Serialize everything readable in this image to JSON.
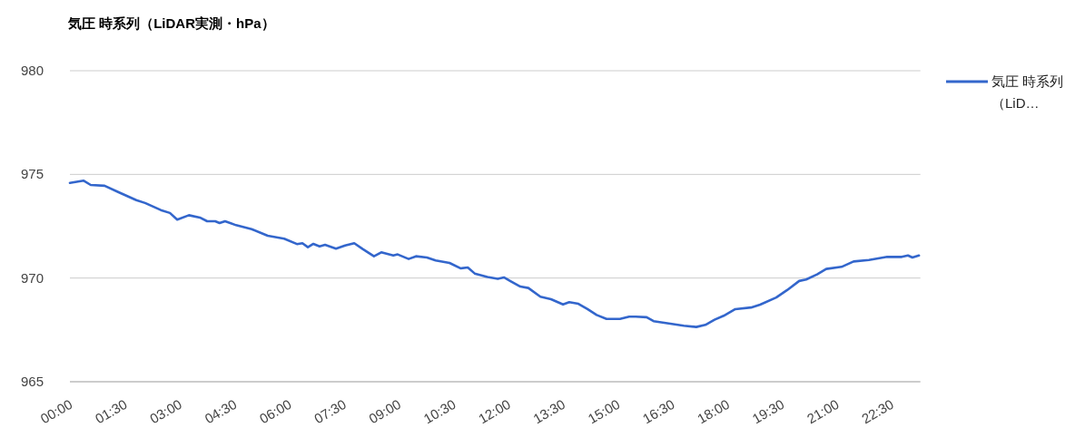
{
  "chart_data": {
    "type": "line",
    "title": "気圧 時系列（LiDAR実測・hPa）",
    "x": [
      0,
      0.37,
      0.57,
      0.95,
      1.32,
      1.82,
      2.06,
      2.49,
      2.74,
      2.94,
      3.26,
      3.56,
      3.76,
      3.98,
      4.1,
      4.25,
      4.55,
      4.98,
      5.42,
      5.87,
      6.22,
      6.37,
      6.52,
      6.67,
      6.84,
      6.99,
      7.29,
      7.54,
      7.79,
      8.03,
      8.33,
      8.53,
      8.86,
      8.98,
      9.28,
      9.48,
      9.78,
      10.02,
      10.4,
      10.7,
      10.9,
      11.09,
      11.44,
      11.72,
      11.89,
      12.06,
      12.34,
      12.56,
      12.89,
      13.18,
      13.51,
      13.68,
      13.93,
      14.18,
      14.43,
      14.7,
      15.07,
      15.32,
      15.5,
      15.8,
      15.99,
      16.49,
      16.82,
      17.16,
      17.41,
      17.66,
      17.91,
      18.23,
      18.66,
      18.91,
      19.35,
      19.65,
      19.98,
      20.17,
      20.47,
      20.72,
      21.14,
      21.47,
      21.89,
      22.39,
      22.79,
      22.96,
      23.08,
      23.26
    ],
    "series": [
      {
        "name": "気圧 時系列（LiD…",
        "color": "#3366cc",
        "values": [
          974.59,
          974.7,
          974.49,
          974.45,
          974.15,
          973.76,
          973.62,
          973.28,
          973.14,
          972.82,
          973.03,
          972.92,
          972.74,
          972.74,
          972.65,
          972.74,
          972.55,
          972.36,
          972.04,
          971.9,
          971.64,
          971.68,
          971.49,
          971.65,
          971.53,
          971.6,
          971.42,
          971.57,
          971.68,
          971.39,
          971.05,
          971.24,
          971.09,
          971.14,
          970.92,
          971.05,
          970.99,
          970.85,
          970.73,
          970.47,
          970.51,
          970.22,
          970.05,
          969.96,
          970.03,
          969.86,
          969.59,
          969.52,
          969.1,
          968.98,
          968.73,
          968.84,
          968.76,
          968.5,
          968.22,
          968.03,
          968.03,
          968.14,
          968.14,
          968.11,
          967.92,
          967.79,
          967.7,
          967.64,
          967.74,
          967.99,
          968.18,
          968.5,
          968.58,
          968.72,
          969.06,
          969.42,
          969.86,
          969.93,
          970.18,
          970.44,
          970.54,
          970.8,
          970.87,
          971.02,
          971.02,
          971.09,
          970.99,
          971.09
        ]
      }
    ],
    "xlim": [
      0,
      23.3
    ],
    "xticks": [
      {
        "value": 0,
        "label": "00:00"
      },
      {
        "value": 1.5,
        "label": "01:30"
      },
      {
        "value": 3,
        "label": "03:00"
      },
      {
        "value": 4.5,
        "label": "04:30"
      },
      {
        "value": 6,
        "label": "06:00"
      },
      {
        "value": 7.5,
        "label": "07:30"
      },
      {
        "value": 9,
        "label": "09:00"
      },
      {
        "value": 10.5,
        "label": "10:30"
      },
      {
        "value": 12,
        "label": "12:00"
      },
      {
        "value": 13.5,
        "label": "13:30"
      },
      {
        "value": 15,
        "label": "15:00"
      },
      {
        "value": 16.5,
        "label": "16:30"
      },
      {
        "value": 18,
        "label": "18:00"
      },
      {
        "value": 19.5,
        "label": "19:30"
      },
      {
        "value": 21,
        "label": "21:00"
      },
      {
        "value": 22.5,
        "label": "22:30"
      }
    ],
    "ylim": [
      965,
      980
    ],
    "yticks": [
      965,
      970,
      975,
      980
    ],
    "grid": "y",
    "legend": "right",
    "line_style": "solid",
    "marker": "none"
  }
}
